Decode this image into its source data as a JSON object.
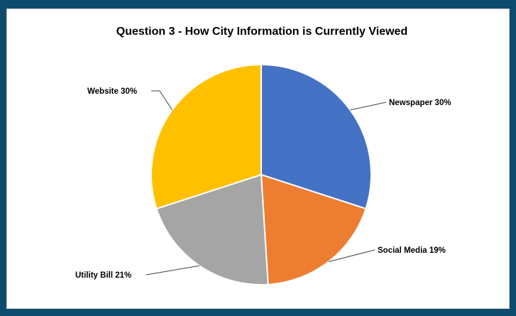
{
  "chart_data": {
    "type": "pie",
    "title": "Question 3 - How City Information is Currently Viewed",
    "categories": [
      "Newspaper",
      "Social Media",
      "Utility Bill",
      "Website"
    ],
    "values": [
      30,
      19,
      21,
      30
    ],
    "labels": [
      "Newspaper 30%",
      "Social Media 19%",
      "Utility Bill 21%",
      "Website 30%"
    ],
    "colors": [
      "#4472c4",
      "#ed7d31",
      "#a5a5a5",
      "#ffc000"
    ],
    "legend": "none",
    "start": "top",
    "direction": "clockwise"
  }
}
